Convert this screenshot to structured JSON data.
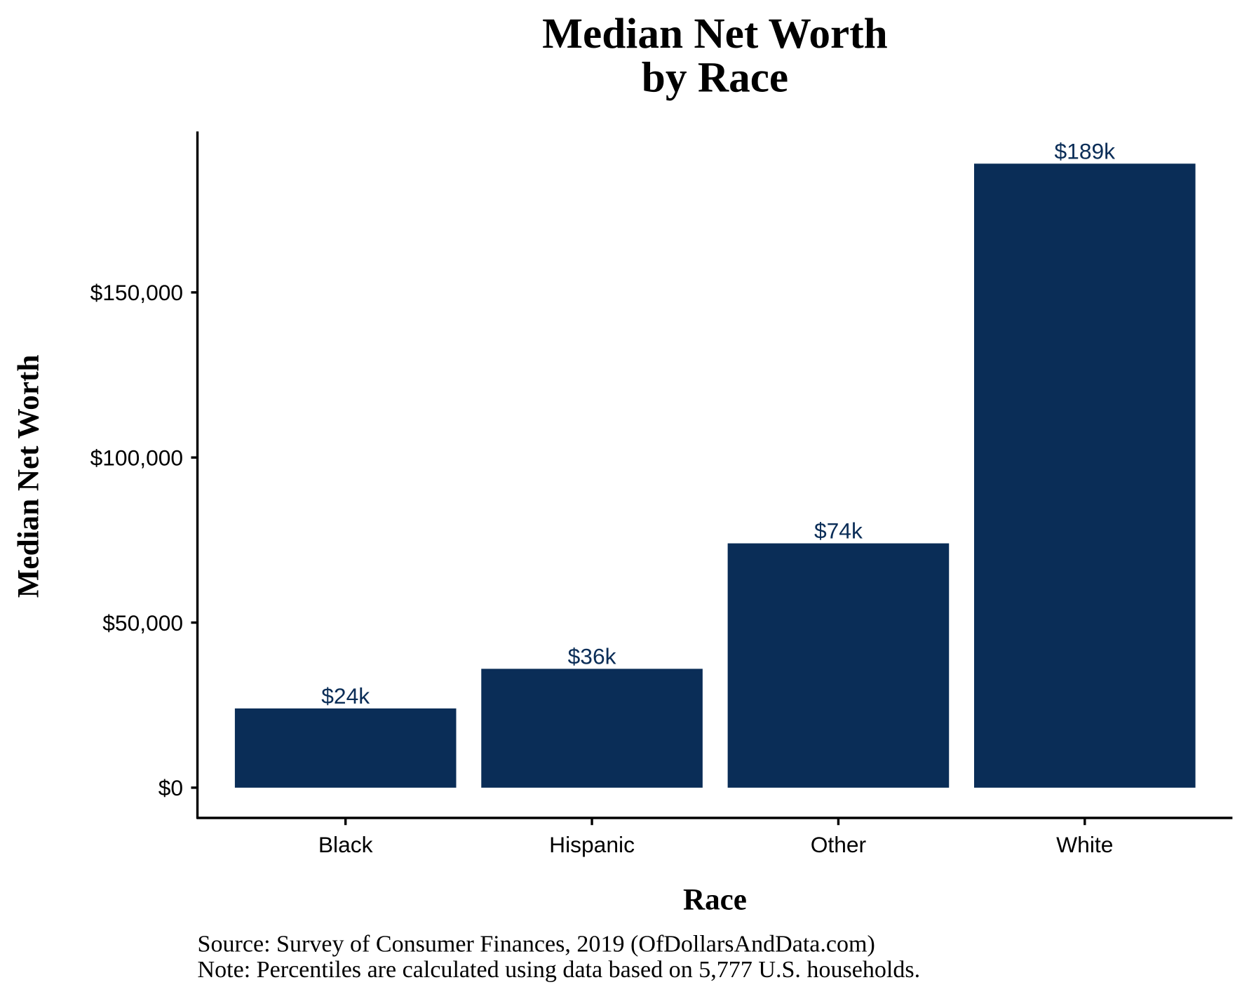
{
  "chart_data": {
    "type": "bar",
    "title": "Median Net Worth",
    "subtitle": "by Race",
    "xlabel": "Race",
    "ylabel": "Median Net Worth",
    "categories": [
      "Black",
      "Hispanic",
      "Other",
      "White"
    ],
    "values": [
      24000,
      36000,
      74000,
      189000
    ],
    "data_labels": [
      "$24k",
      "$36k",
      "$74k",
      "$189k"
    ],
    "yticks": [
      0,
      50000,
      100000,
      150000
    ],
    "ytick_labels": [
      "$0",
      "$50,000",
      "$100,000",
      "$150,000"
    ],
    "ylim": [
      -9000,
      198000
    ],
    "grid": false,
    "bar_color": "#0a2d57",
    "label_color": "#0a2d57",
    "notes": [
      "Source:  Survey of Consumer Finances, 2019 (OfDollarsAndData.com)",
      "Note: Percentiles are calculated using data based on 5,777 U.S. households."
    ]
  }
}
